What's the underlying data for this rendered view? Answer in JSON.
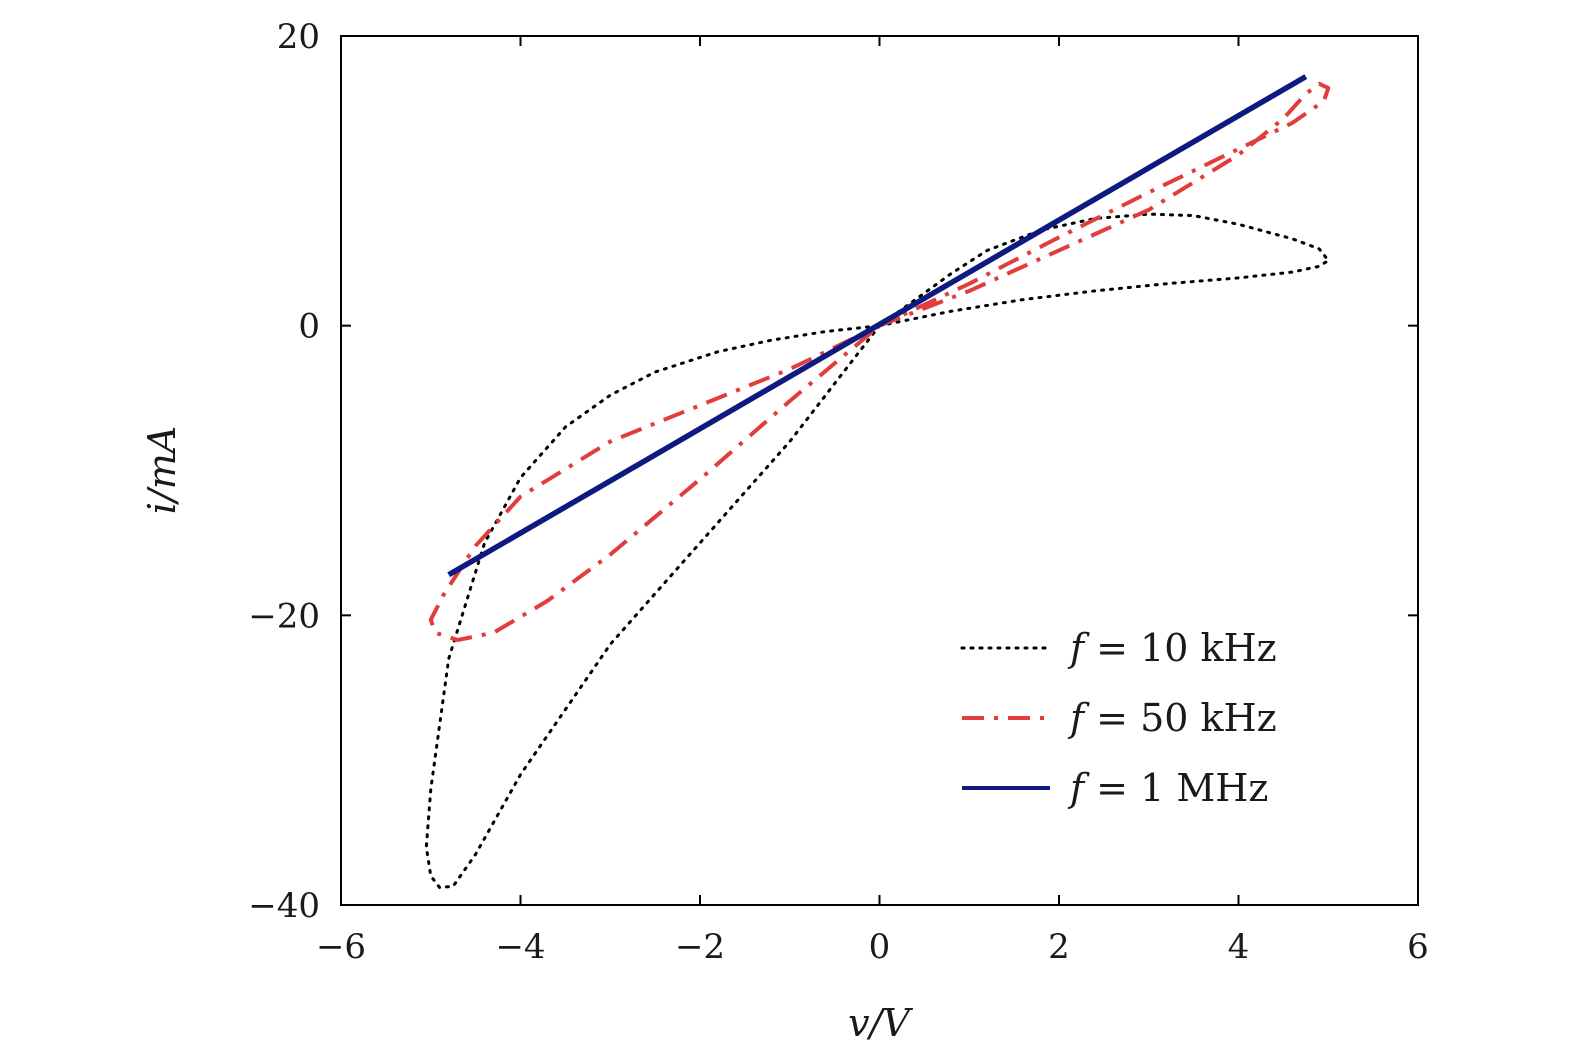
{
  "chart_data": {
    "type": "line",
    "title": "",
    "xlabel": "v/V",
    "ylabel": "i/mA",
    "xlim": [
      -6,
      6
    ],
    "ylim": [
      -40,
      20
    ],
    "xticks": [
      -6,
      -4,
      -2,
      0,
      2,
      4,
      6
    ],
    "yticks": [
      -40,
      -20,
      0,
      20
    ],
    "xtick_labels": [
      "−6",
      "−4",
      "−2",
      "0",
      "2",
      "4",
      "6"
    ],
    "ytick_labels": [
      "−40",
      "−20",
      "0",
      "20"
    ],
    "legend_position": "bottom-right",
    "series": [
      {
        "name": "f = 10 kHz",
        "freq": "10",
        "unit": "kHz",
        "style": "dotted",
        "color": "#000000",
        "points": [
          [
            0,
            0
          ],
          [
            0.8,
            1.0
          ],
          [
            1.6,
            1.8
          ],
          [
            2.4,
            2.4
          ],
          [
            3.2,
            2.9
          ],
          [
            4.0,
            3.3
          ],
          [
            4.6,
            3.7
          ],
          [
            4.9,
            4.1
          ],
          [
            5.0,
            4.5
          ],
          [
            4.9,
            5.3
          ],
          [
            4.6,
            6.0
          ],
          [
            4.0,
            7.0
          ],
          [
            3.5,
            7.6
          ],
          [
            3.0,
            7.7
          ],
          [
            2.4,
            7.4
          ],
          [
            1.8,
            6.6
          ],
          [
            1.2,
            5.2
          ],
          [
            0.8,
            3.6
          ],
          [
            0.4,
            1.8
          ],
          [
            0,
            0
          ],
          [
            -0.6,
            -0.4
          ],
          [
            -1.2,
            -1.0
          ],
          [
            -1.8,
            -1.8
          ],
          [
            -2.5,
            -3.2
          ],
          [
            -3.0,
            -4.8
          ],
          [
            -3.5,
            -7.0
          ],
          [
            -4.0,
            -10.5
          ],
          [
            -4.4,
            -15.0
          ],
          [
            -4.8,
            -23.0
          ],
          [
            -5.0,
            -32.0
          ],
          [
            -5.05,
            -36.0
          ],
          [
            -5.0,
            -38.0
          ],
          [
            -4.9,
            -38.8
          ],
          [
            -4.75,
            -38.7
          ],
          [
            -4.5,
            -36.5
          ],
          [
            -4.0,
            -31.0
          ],
          [
            -3.5,
            -26.5
          ],
          [
            -3.0,
            -22.0
          ],
          [
            -2.5,
            -18.5
          ],
          [
            -2.0,
            -15.0
          ],
          [
            -1.5,
            -11.5
          ],
          [
            -1.0,
            -8.0
          ],
          [
            -0.5,
            -4.0
          ],
          [
            0,
            0
          ]
        ]
      },
      {
        "name": "f = 50 kHz",
        "freq": "50",
        "unit": "kHz",
        "style": "dashdot",
        "color": "#e23d3d",
        "points": [
          [
            0,
            0
          ],
          [
            1.0,
            2.4
          ],
          [
            2.0,
            5.2
          ],
          [
            3.0,
            8.0
          ],
          [
            4.0,
            11.8
          ],
          [
            4.5,
            14.3
          ],
          [
            4.75,
            16.0
          ],
          [
            4.9,
            16.7
          ],
          [
            5.0,
            16.4
          ],
          [
            4.95,
            15.5
          ],
          [
            4.6,
            14.0
          ],
          [
            4.0,
            12.2
          ],
          [
            3.0,
            9.2
          ],
          [
            2.0,
            6.1
          ],
          [
            1.0,
            2.9
          ],
          [
            0,
            0
          ],
          [
            -1.0,
            -3.0
          ],
          [
            -2.0,
            -5.5
          ],
          [
            -3.0,
            -8.0
          ],
          [
            -4.0,
            -11.8
          ],
          [
            -4.5,
            -15.2
          ],
          [
            -4.85,
            -18.5
          ],
          [
            -5.0,
            -20.3
          ],
          [
            -4.95,
            -21.2
          ],
          [
            -4.7,
            -21.7
          ],
          [
            -4.3,
            -21.2
          ],
          [
            -3.7,
            -19.0
          ],
          [
            -3.0,
            -15.8
          ],
          [
            -2.0,
            -10.6
          ],
          [
            -1.0,
            -5.2
          ],
          [
            0,
            0
          ]
        ]
      },
      {
        "name": "f = 1 MHz",
        "freq": "1",
        "unit": "MHz",
        "style": "solid",
        "color": "#0d1a80",
        "points": [
          [
            -4.8,
            -17.2
          ],
          [
            4.75,
            17.2
          ]
        ]
      }
    ]
  }
}
